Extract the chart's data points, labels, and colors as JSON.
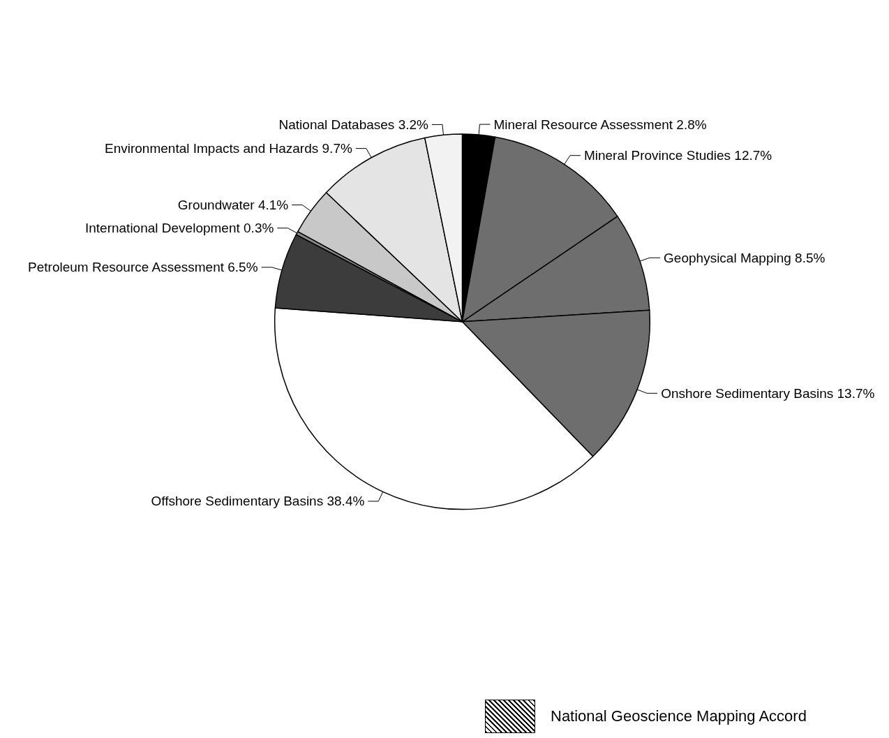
{
  "chart_data": {
    "type": "pie",
    "categories": [
      "Mineral Resource Assessment",
      "Mineral Province Studies",
      "Geophysical Mapping",
      "Onshore Sedimentary Basins",
      "Offshore Sedimentary Basins",
      "Petroleum Resource Assessment",
      "International Development",
      "Groundwater",
      "Environmental Impacts and Hazards",
      "National Databases"
    ],
    "values": [
      2.8,
      12.7,
      8.5,
      13.7,
      38.4,
      6.5,
      0.3,
      4.1,
      9.7,
      3.2
    ],
    "value_labels": [
      "2.8%",
      "12.7%",
      "8.5%",
      "13.7%",
      "38.4%",
      "6.5%",
      "0.3%",
      "4.1%",
      "9.7%",
      "3.2%"
    ],
    "colors": [
      "#000000",
      "#6e6e6e",
      "#6e6e6e",
      "#6e6e6e",
      "#ffffff",
      "#3c3c3c",
      "#8a8a8a",
      "#c8c8c8",
      "#e4e4e4",
      "#f2f2f2"
    ],
    "annotations": [
      "National Geoscience Mapping Accord"
    ],
    "legend": false
  }
}
